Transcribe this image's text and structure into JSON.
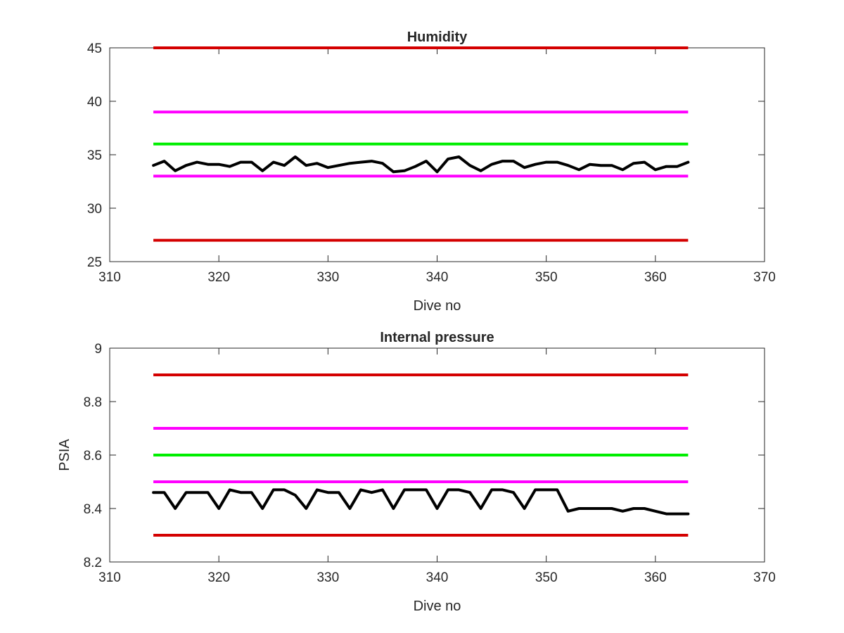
{
  "colors": {
    "red": "#d40000",
    "magenta": "#ff00ff",
    "green": "#00ee00",
    "data": "#000000",
    "axis": "#262626"
  },
  "chart_data": [
    {
      "type": "line",
      "title": "Humidity",
      "xlabel": "Dive no",
      "ylabel": "",
      "xlim": [
        310,
        370
      ],
      "ylim": [
        25,
        45
      ],
      "xticks": [
        "310",
        "320",
        "330",
        "340",
        "350",
        "360",
        "370"
      ],
      "yticks": [
        "25",
        "30",
        "35",
        "40",
        "45"
      ],
      "grid": false,
      "reference_lines": [
        {
          "y": 45,
          "x_range": [
            314,
            363
          ],
          "color": "red"
        },
        {
          "y": 39,
          "x_range": [
            314,
            363
          ],
          "color": "magenta"
        },
        {
          "y": 36,
          "x_range": [
            314,
            363
          ],
          "color": "green"
        },
        {
          "y": 33,
          "x_range": [
            314,
            363
          ],
          "color": "magenta"
        },
        {
          "y": 27,
          "x_range": [
            314,
            363
          ],
          "color": "red"
        }
      ],
      "series": [
        {
          "color": "data",
          "x": [
            314,
            315,
            316,
            317,
            318,
            319,
            320,
            321,
            322,
            323,
            324,
            325,
            326,
            327,
            328,
            329,
            330,
            331,
            332,
            333,
            334,
            335,
            336,
            337,
            338,
            339,
            340,
            341,
            342,
            343,
            344,
            345,
            346,
            347,
            348,
            349,
            350,
            351,
            352,
            353,
            354,
            355,
            356,
            357,
            358,
            359,
            360,
            361,
            362,
            363
          ],
          "y": [
            34.0,
            34.4,
            33.5,
            34.0,
            34.3,
            34.1,
            34.1,
            33.9,
            34.3,
            34.3,
            33.5,
            34.3,
            34.0,
            34.8,
            34.0,
            34.2,
            33.8,
            34.0,
            34.2,
            34.3,
            34.4,
            34.2,
            33.4,
            33.5,
            33.9,
            34.4,
            33.4,
            34.6,
            34.8,
            34.0,
            33.5,
            34.1,
            34.4,
            34.4,
            33.8,
            34.1,
            34.3,
            34.3,
            34.0,
            33.6,
            34.1,
            34.0,
            34.0,
            33.6,
            34.2,
            34.3,
            33.6,
            33.9,
            33.9,
            34.3
          ]
        }
      ]
    },
    {
      "type": "line",
      "title": "Internal pressure",
      "xlabel": "Dive no",
      "ylabel": "PSIA",
      "xlim": [
        310,
        370
      ],
      "ylim": [
        8.2,
        9
      ],
      "xticks": [
        "310",
        "320",
        "330",
        "340",
        "350",
        "360",
        "370"
      ],
      "yticks": [
        "8.2",
        "8.4",
        "8.6",
        "8.8",
        "9"
      ],
      "grid": false,
      "reference_lines": [
        {
          "y": 8.9,
          "x_range": [
            314,
            363
          ],
          "color": "red"
        },
        {
          "y": 8.7,
          "x_range": [
            314,
            363
          ],
          "color": "magenta"
        },
        {
          "y": 8.6,
          "x_range": [
            314,
            363
          ],
          "color": "green"
        },
        {
          "y": 8.5,
          "x_range": [
            314,
            363
          ],
          "color": "magenta"
        },
        {
          "y": 8.3,
          "x_range": [
            314,
            363
          ],
          "color": "red"
        }
      ],
      "series": [
        {
          "color": "data",
          "x": [
            314,
            315,
            316,
            317,
            318,
            319,
            320,
            321,
            322,
            323,
            324,
            325,
            326,
            327,
            328,
            329,
            330,
            331,
            332,
            333,
            334,
            335,
            336,
            337,
            338,
            339,
            340,
            341,
            342,
            343,
            344,
            345,
            346,
            347,
            348,
            349,
            350,
            351,
            352,
            353,
            354,
            355,
            356,
            357,
            358,
            359,
            360,
            361,
            362,
            363
          ],
          "y": [
            8.46,
            8.46,
            8.4,
            8.46,
            8.46,
            8.46,
            8.4,
            8.47,
            8.46,
            8.46,
            8.4,
            8.47,
            8.47,
            8.45,
            8.4,
            8.47,
            8.46,
            8.46,
            8.4,
            8.47,
            8.46,
            8.47,
            8.4,
            8.47,
            8.47,
            8.47,
            8.4,
            8.47,
            8.47,
            8.46,
            8.4,
            8.47,
            8.47,
            8.46,
            8.4,
            8.47,
            8.47,
            8.47,
            8.39,
            8.4,
            8.4,
            8.4,
            8.4,
            8.39,
            8.4,
            8.4,
            8.39,
            8.38,
            8.38,
            8.38
          ]
        }
      ]
    }
  ]
}
